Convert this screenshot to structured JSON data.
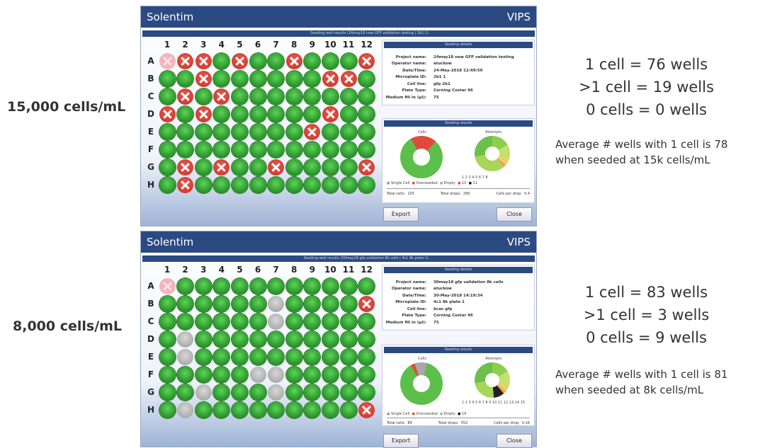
{
  "columns": [
    "1",
    "2",
    "3",
    "4",
    "5",
    "6",
    "7",
    "8",
    "9",
    "10",
    "11",
    "12"
  ],
  "rows": [
    "A",
    "B",
    "C",
    "D",
    "E",
    "F",
    "G",
    "H"
  ],
  "panels": [
    {
      "app": "Solentim",
      "brand": "VIPS",
      "subtitle": "Seeding well results (24may18 new GFP validation testing | 2b1 1)",
      "side_label": "15,000 cells/mL",
      "plate": [
        "pxxgxggxgggx",
        "ggxggggggxxgg",
        "gxgxgggggggg",
        "xgxggggggxgg",
        "ggggggggxggg",
        "gggggggggggg",
        "gxgxggxggggx",
        "gxgggggggggg"
      ],
      "details_header": "Seeding details",
      "details": [
        {
          "k": "Project name:",
          "v": "24may18 new GFP validation testing"
        },
        {
          "k": "Operator name:",
          "v": "atuckow"
        },
        {
          "k": "Date/Time:",
          "v": "24-May-2018 12:49:50"
        },
        {
          "k": "Microplate ID:",
          "v": "2b1 1"
        },
        {
          "k": "Cell line:",
          "v": "gfp 2b1"
        },
        {
          "k": "Plate Type:",
          "v": "Corning Costar 96"
        },
        {
          "k": "Medium fill in (µl):",
          "v": "75"
        }
      ],
      "results_header": "Seeding results",
      "cells_label": "Cells",
      "attempts_label": "Attempts",
      "cells_donut": {
        "single": 76,
        "overseeded": 19,
        "empty": 0
      },
      "legend": [
        "Single Cell",
        "Overseeded",
        "Empty",
        "10",
        "11"
      ],
      "attempts_legend": "1  2  3  4  5  6  7  8",
      "totals": [
        {
          "k": "Total cells:",
          "v": "105"
        },
        {
          "k": "Total drops:",
          "v": "285"
        },
        {
          "k": "Cells per drop:",
          "v": "0.4"
        }
      ],
      "export": "Export",
      "close": "Close",
      "stats": [
        "1 cell = 76 wells",
        ">1 cell = 19 wells",
        "0 cells = 0 wells"
      ],
      "avg": [
        "Average # wells with 1 cell is 78",
        "when seeded at 15k cells/mL"
      ]
    },
    {
      "app": "Solentim",
      "brand": "VIPS",
      "subtitle": "Seeding well results (30may18 gfp validation 8k cells | 4c1 8k plate 1)",
      "side_label": "8,000 cells/mL",
      "plate": [
        "pggggggggggg",
        "ggggggeggggxg",
        "ggggggegggggg",
        "geggggggggggg",
        "geggggggggggg",
        "gggggeegggggx",
        "ggegggeggggg",
        "gegggggggggxg"
      ],
      "details_header": "Seeding details",
      "details": [
        {
          "k": "Project name:",
          "v": "30may18 gfp validation 8k cells"
        },
        {
          "k": "Operator name:",
          "v": "atuckow"
        },
        {
          "k": "Date/Time:",
          "v": "30-May-2018 14:19:34"
        },
        {
          "k": "Microplate ID:",
          "v": "4c1 8k plate 1"
        },
        {
          "k": "Cell line:",
          "v": "bcas gfp"
        },
        {
          "k": "Plate Type:",
          "v": "Corning Costar 96"
        },
        {
          "k": "Medium fill in (µl):",
          "v": "75"
        }
      ],
      "results_header": "Seeding results",
      "cells_label": "Cells",
      "attempts_label": "Attempts",
      "cells_donut": {
        "single": 83,
        "overseeded": 3,
        "empty": 9
      },
      "legend": [
        "Single Cell",
        "Overseeded",
        "Empty",
        "16"
      ],
      "attempts_legend": "1  2  3  4  5  6  7  8  9  10  11  12  13  14  15",
      "totals": [
        {
          "k": "Total cells:",
          "v": "89"
        },
        {
          "k": "Total drops:",
          "v": "552"
        },
        {
          "k": "Cells per drop:",
          "v": "0.16"
        }
      ],
      "export": "Export",
      "close": "Close",
      "stats": [
        "1 cell = 83 wells",
        ">1 cell = 3 wells",
        "0 cells = 9 wells"
      ],
      "avg": [
        "Average # wells with 1 cell is 81",
        "when seeded at 8k cells/mL"
      ]
    }
  ],
  "colors": {
    "single": "#5cbf4a",
    "overseeded": "#e04a3c",
    "empty": "#a8a8a8",
    "header": "#2c4a82"
  }
}
